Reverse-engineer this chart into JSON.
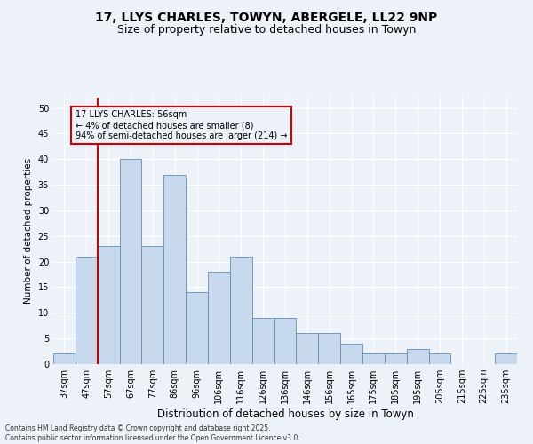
{
  "title_line1": "17, LLYS CHARLES, TOWYN, ABERGELE, LL22 9NP",
  "title_line2": "Size of property relative to detached houses in Towyn",
  "xlabel": "Distribution of detached houses by size in Towyn",
  "ylabel": "Number of detached properties",
  "categories": [
    "37sqm",
    "47sqm",
    "57sqm",
    "67sqm",
    "77sqm",
    "86sqm",
    "96sqm",
    "106sqm",
    "116sqm",
    "126sqm",
    "136sqm",
    "146sqm",
    "156sqm",
    "165sqm",
    "175sqm",
    "185sqm",
    "195sqm",
    "205sqm",
    "215sqm",
    "225sqm",
    "235sqm"
  ],
  "values": [
    2,
    21,
    23,
    40,
    23,
    37,
    14,
    18,
    21,
    9,
    9,
    6,
    6,
    4,
    2,
    2,
    3,
    2,
    0,
    0,
    2
  ],
  "bar_color": "#c9d9ed",
  "bar_edge_color": "#6090bb",
  "highlight_bar_index": 2,
  "highlight_line_color": "#cc0000",
  "annotation_line1": "17 LLYS CHARLES: 56sqm",
  "annotation_line2": "← 4% of detached houses are smaller (8)",
  "annotation_line3": "94% of semi-detached houses are larger (214) →",
  "annotation_box_color": "#cc0000",
  "ylim": [
    0,
    52
  ],
  "yticks": [
    0,
    5,
    10,
    15,
    20,
    25,
    30,
    35,
    40,
    45,
    50
  ],
  "footer_text": "Contains HM Land Registry data © Crown copyright and database right 2025.\nContains public sector information licensed under the Open Government Licence v3.0.",
  "bg_color": "#edf1f8",
  "grid_color": "#ffffff",
  "title_fontsize": 10,
  "subtitle_fontsize": 9,
  "tick_fontsize": 7,
  "xlabel_fontsize": 8.5,
  "ylabel_fontsize": 7.5,
  "annotation_fontsize": 7,
  "footer_fontsize": 5.5
}
